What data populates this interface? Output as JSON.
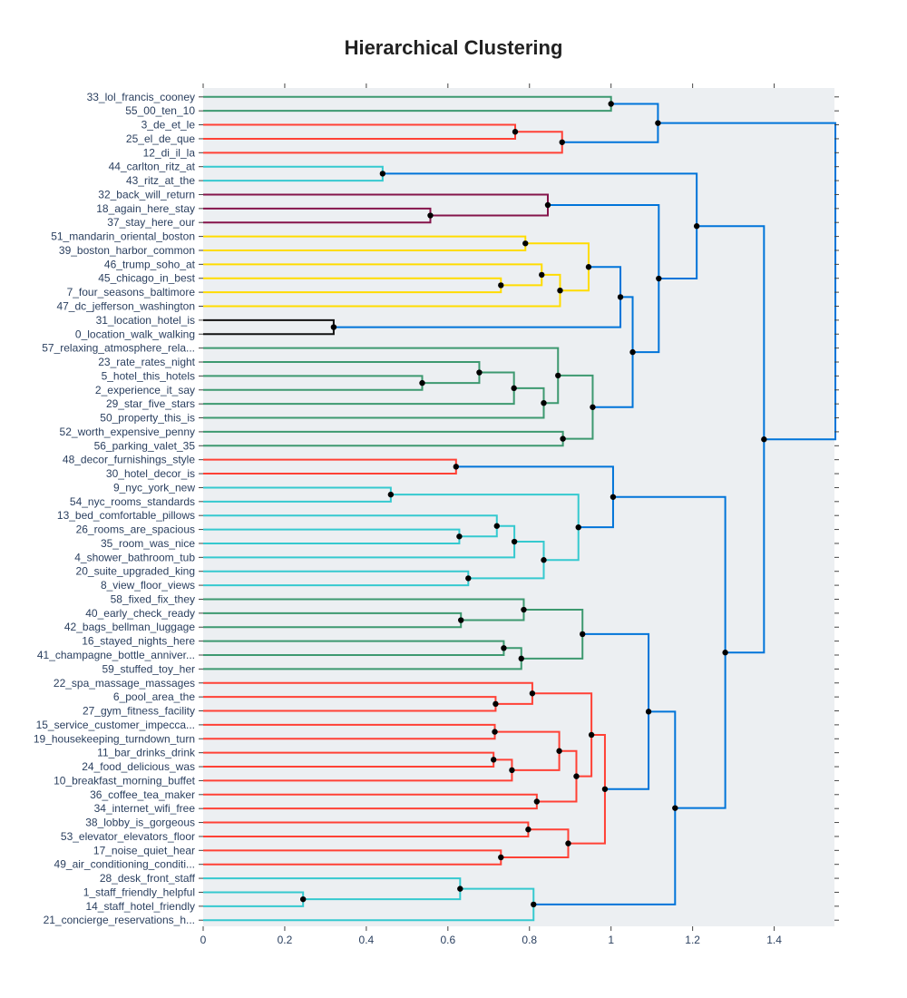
{
  "chart_data": {
    "type": "dendrogram",
    "title": "Hierarchical Clustering",
    "orientation": "horizontal",
    "xlim": [
      0,
      1.55
    ],
    "x_ticks": [
      "0",
      "0.2",
      "0.4",
      "0.6",
      "0.8",
      "1",
      "1.2",
      "1.4"
    ],
    "x_tick_values": [
      0,
      0.2,
      0.4,
      0.6,
      0.8,
      1,
      1.2,
      1.4
    ],
    "labels": [
      "33_lol_francis_cooney",
      "55_00_ten_10",
      "3_de_et_le",
      "25_el_de_que",
      "12_di_il_la",
      "44_carlton_ritz_at",
      "43_ritz_at_the",
      "32_back_will_return",
      "18_again_here_stay",
      "37_stay_here_our",
      "51_mandarin_oriental_boston",
      "39_boston_harbor_common",
      "46_trump_soho_at",
      "45_chicago_in_best",
      "7_four_seasons_baltimore",
      "47_dc_jefferson_washington",
      "31_location_hotel_is",
      "0_location_walk_walking",
      "57_relaxing_atmosphere_rela...",
      "23_rate_rates_night",
      "5_hotel_this_hotels",
      "2_experience_it_say",
      "29_star_five_stars",
      "50_property_this_is",
      "52_worth_expensive_penny",
      "56_parking_valet_35",
      "48_decor_furnishings_style",
      "30_hotel_decor_is",
      "9_nyc_york_new",
      "54_nyc_rooms_standards",
      "13_bed_comfortable_pillows",
      "26_rooms_are_spacious",
      "35_room_was_nice",
      "4_shower_bathroom_tub",
      "20_suite_upgraded_king",
      "8_view_floor_views",
      "58_fixed_fix_they",
      "40_early_check_ready",
      "42_bags_bellman_luggage",
      "16_stayed_nights_here",
      "41_champagne_bottle_anniver...",
      "59_stuffed_toy_her",
      "22_spa_massage_massages",
      "6_pool_area_the",
      "27_gym_fitness_facility",
      "15_service_customer_impecca...",
      "19_housekeeping_turndown_turn",
      "11_bar_drinks_drink",
      "24_food_delicious_was",
      "10_breakfast_morning_buffet",
      "36_coffee_tea_maker",
      "34_internet_wifi_free",
      "38_lobby_is_gorgeous",
      "53_elevator_elevators_floor",
      "17_noise_quiet_hear",
      "49_air_conditioning_conditi...",
      "28_desk_front_staff",
      "1_staff_friendly_helpful",
      "14_staff_hotel_friendly",
      "21_concierge_reservations_h..."
    ],
    "colors": {
      "teal_green": "#3D9970",
      "red": "#FF4136",
      "cyan": "#35C9CF",
      "maroon": "#85144B",
      "yellow": "#FFDC00",
      "black": "#111111",
      "blue": "#0074D9"
    },
    "links": [
      {
        "a": 0,
        "b": 1,
        "d": 1.0,
        "c": "teal_green"
      },
      {
        "a": 2,
        "b": 3,
        "d": 0.765,
        "c": "red"
      },
      {
        "a": "n2",
        "b": 4,
        "d": 0.88,
        "c": "red"
      },
      {
        "a": "n1",
        "b": "n3",
        "d": 1.115,
        "c": "blue"
      },
      {
        "a": 5,
        "b": 6,
        "d": 0.44,
        "c": "cyan"
      },
      {
        "a": 8,
        "b": 9,
        "d": 0.557,
        "c": "maroon"
      },
      {
        "a": 7,
        "b": "n6",
        "d": 0.845,
        "c": "maroon"
      },
      {
        "a": 10,
        "b": 11,
        "d": 0.79,
        "c": "yellow"
      },
      {
        "a": 13,
        "b": 14,
        "d": 0.73,
        "c": "yellow"
      },
      {
        "a": 12,
        "b": "n9",
        "d": 0.83,
        "c": "yellow"
      },
      {
        "a": "n10",
        "b": 15,
        "d": 0.875,
        "c": "yellow"
      },
      {
        "a": "n8",
        "b": "n11",
        "d": 0.945,
        "c": "yellow"
      },
      {
        "a": 16,
        "b": 17,
        "d": 0.32,
        "c": "black"
      },
      {
        "a": "n12",
        "b": "n13",
        "d": 1.023,
        "c": "blue"
      },
      {
        "a": 20,
        "b": 21,
        "d": 0.537,
        "c": "teal_green"
      },
      {
        "a": 19,
        "b": "n15",
        "d": 0.677,
        "c": "teal_green"
      },
      {
        "a": "n16",
        "b": 22,
        "d": 0.762,
        "c": "teal_green"
      },
      {
        "a": "n17",
        "b": 23,
        "d": 0.835,
        "c": "teal_green"
      },
      {
        "a": 18,
        "b": "n18",
        "d": 0.87,
        "c": "teal_green"
      },
      {
        "a": 24,
        "b": 25,
        "d": 0.882,
        "c": "teal_green"
      },
      {
        "a": "n19",
        "b": "n20",
        "d": 0.955,
        "c": "teal_green"
      },
      {
        "a": "n14",
        "b": "n21",
        "d": 1.053,
        "c": "blue"
      },
      {
        "a": "n7",
        "b": "n22",
        "d": 1.117,
        "c": "blue"
      },
      {
        "a": "n5",
        "b": "n23",
        "d": 1.21,
        "c": "blue"
      },
      {
        "a": 26,
        "b": 27,
        "d": 0.62,
        "c": "red"
      },
      {
        "a": 28,
        "b": 29,
        "d": 0.46,
        "c": "cyan"
      },
      {
        "a": 31,
        "b": 32,
        "d": 0.628,
        "c": "cyan"
      },
      {
        "a": 30,
        "b": "n27",
        "d": 0.72,
        "c": "cyan"
      },
      {
        "a": "n28",
        "b": 33,
        "d": 0.763,
        "c": "cyan"
      },
      {
        "a": 34,
        "b": 35,
        "d": 0.65,
        "c": "cyan"
      },
      {
        "a": "n29",
        "b": "n30",
        "d": 0.835,
        "c": "cyan"
      },
      {
        "a": "n26",
        "b": "n31",
        "d": 0.92,
        "c": "cyan"
      },
      {
        "a": "n25",
        "b": "n32",
        "d": 1.005,
        "c": "blue"
      },
      {
        "a": 37,
        "b": 38,
        "d": 0.632,
        "c": "teal_green"
      },
      {
        "a": 36,
        "b": "n34",
        "d": 0.786,
        "c": "teal_green"
      },
      {
        "a": 39,
        "b": 40,
        "d": 0.737,
        "c": "teal_green"
      },
      {
        "a": "n36",
        "b": 41,
        "d": 0.78,
        "c": "teal_green"
      },
      {
        "a": "n35",
        "b": "n37",
        "d": 0.93,
        "c": "teal_green"
      },
      {
        "a": 43,
        "b": 44,
        "d": 0.717,
        "c": "red"
      },
      {
        "a": 42,
        "b": "n39",
        "d": 0.807,
        "c": "red"
      },
      {
        "a": 45,
        "b": 46,
        "d": 0.715,
        "c": "red"
      },
      {
        "a": 47,
        "b": 48,
        "d": 0.712,
        "c": "red"
      },
      {
        "a": "n42",
        "b": 49,
        "d": 0.757,
        "c": "red"
      },
      {
        "a": "n41",
        "b": "n43",
        "d": 0.873,
        "c": "red"
      },
      {
        "a": 50,
        "b": 51,
        "d": 0.818,
        "c": "red"
      },
      {
        "a": "n44",
        "b": "n45",
        "d": 0.915,
        "c": "red"
      },
      {
        "a": "n40",
        "b": "n46",
        "d": 0.952,
        "c": "red"
      },
      {
        "a": 52,
        "b": 53,
        "d": 0.797,
        "c": "red"
      },
      {
        "a": 54,
        "b": 55,
        "d": 0.73,
        "c": "red"
      },
      {
        "a": "n48",
        "b": "n49",
        "d": 0.895,
        "c": "red"
      },
      {
        "a": "n47",
        "b": "n50",
        "d": 0.985,
        "c": "red"
      },
      {
        "a": "n38",
        "b": "n51",
        "d": 1.092,
        "c": "blue"
      },
      {
        "a": 57,
        "b": 58,
        "d": 0.245,
        "c": "cyan"
      },
      {
        "a": 56,
        "b": "n53",
        "d": 0.63,
        "c": "cyan"
      },
      {
        "a": "n54",
        "b": 59,
        "d": 0.81,
        "c": "cyan"
      },
      {
        "a": "n52",
        "b": "n55",
        "d": 1.157,
        "c": "blue"
      },
      {
        "a": "n33",
        "b": "n56",
        "d": 1.28,
        "c": "blue"
      },
      {
        "a": "n24",
        "b": "n57",
        "d": 1.375,
        "c": "blue"
      },
      {
        "a": "n4",
        "b": "n58",
        "d": 1.55,
        "c": "blue"
      }
    ]
  }
}
